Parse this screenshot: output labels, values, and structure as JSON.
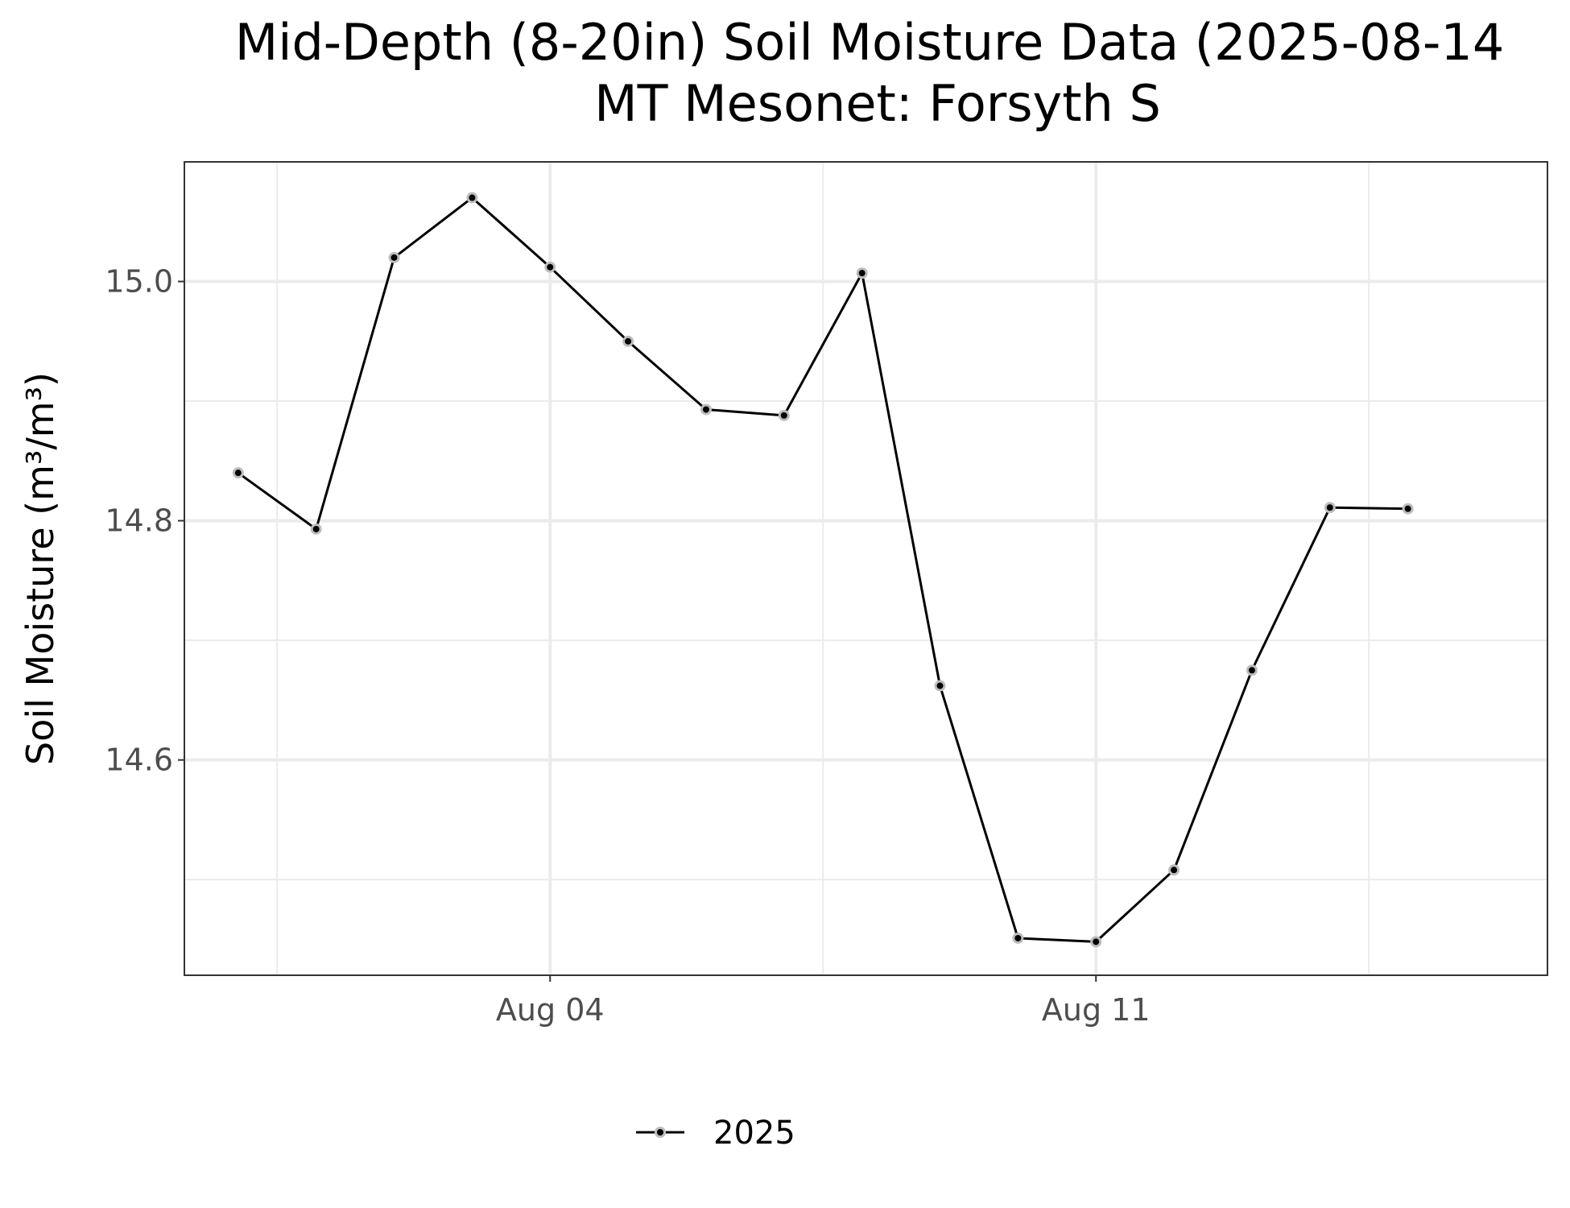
{
  "chart_data": {
    "type": "line",
    "title": "Mid-Depth (8-20in) Soil Moisture Data (2025-08-14",
    "subtitle": "MT Mesonet: Forsyth S",
    "xlabel": "",
    "ylabel": "Soil Moisture (m³/m³)",
    "x_ticks": [
      "Aug 04",
      "Aug 11"
    ],
    "y_ticks": [
      "14.6",
      "14.8",
      "15.0"
    ],
    "ylim": [
      14.42,
      15.1
    ],
    "xlim": [
      "2025-07-30",
      "2025-08-16"
    ],
    "grid": true,
    "legend_position": "bottom",
    "series": [
      {
        "name": "2025",
        "color": "#000000",
        "x": [
          "2025-07-31",
          "2025-08-01",
          "2025-08-02",
          "2025-08-03",
          "2025-08-04",
          "2025-08-05",
          "2025-08-06",
          "2025-08-07",
          "2025-08-08",
          "2025-08-09",
          "2025-08-10",
          "2025-08-11",
          "2025-08-12",
          "2025-08-13",
          "2025-08-14",
          "2025-08-15"
        ],
        "values": [
          14.84,
          14.793,
          15.02,
          15.07,
          15.012,
          14.95,
          14.893,
          14.888,
          15.007,
          14.662,
          14.451,
          14.448,
          14.508,
          14.675,
          14.811,
          14.81
        ]
      }
    ]
  }
}
